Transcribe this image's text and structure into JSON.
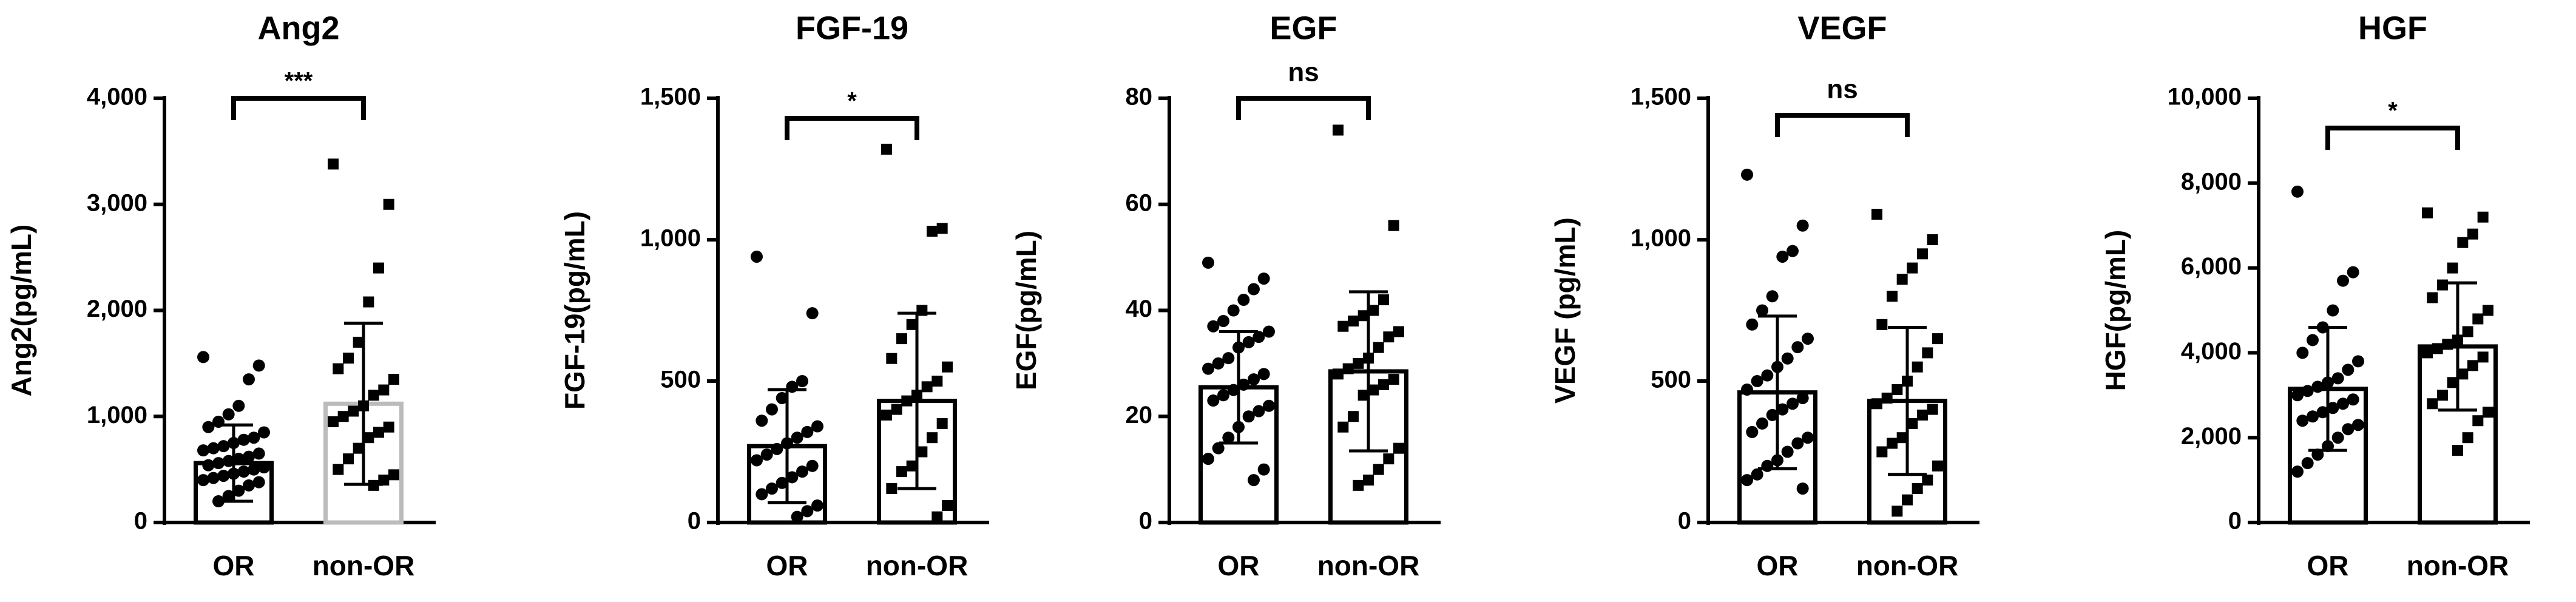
{
  "chart_data": [
    {
      "type": "bar",
      "title": "Ang2",
      "ylabel": "Ang2(pg/mL)",
      "categories": [
        "OR",
        "non-OR"
      ],
      "significance": "***",
      "values": [
        560,
        1120
      ],
      "errors": [
        360,
        760
      ],
      "bar_colors": [
        "#000000",
        "#bbbbbb"
      ],
      "points": [
        [
          1560,
          1480,
          1350,
          1100,
          1020,
          950,
          900,
          850,
          800,
          780,
          750,
          720,
          700,
          680,
          650,
          620,
          600,
          580,
          560,
          540,
          520,
          500,
          480,
          460,
          440,
          420,
          400,
          380,
          350,
          300,
          250,
          200
        ],
        [
          3380,
          3000,
          2400,
          2080,
          1700,
          1550,
          1450,
          1350,
          1250,
          1200,
          1100,
          1050,
          1000,
          950,
          900,
          850,
          800,
          700,
          600,
          500,
          450,
          400,
          350
        ]
      ],
      "ylim": [
        0,
        4000
      ],
      "yticks": [
        0,
        {
          "value": 1000,
          "label": "1,000"
        },
        {
          "value": 2000,
          "label": "2,000"
        },
        {
          "value": 3000,
          "label": "3,000"
        },
        {
          "value": 4000,
          "label": "4,000"
        }
      ]
    },
    {
      "type": "bar",
      "title": "FGF-19",
      "ylabel": "FGF-19(pg/mL)",
      "categories": [
        "OR",
        "non-OR"
      ],
      "significance": "*",
      "values": [
        270,
        430
      ],
      "errors": [
        200,
        310
      ],
      "bar_colors": [
        "#000000",
        "#000000"
      ],
      "points": [
        [
          940,
          740,
          500,
          480,
          440,
          400,
          360,
          340,
          320,
          300,
          280,
          260,
          240,
          220,
          200,
          180,
          160,
          140,
          120,
          100,
          60,
          40,
          20
        ],
        [
          1320,
          1040,
          1030,
          750,
          700,
          650,
          580,
          550,
          500,
          480,
          450,
          430,
          400,
          380,
          350,
          300,
          250,
          200,
          180,
          120,
          60,
          20
        ]
      ],
      "ylim": [
        0,
        1500
      ],
      "yticks": [
        0,
        500,
        {
          "value": 1000,
          "label": "1,000"
        },
        {
          "value": 1500,
          "label": "1,500"
        }
      ]
    },
    {
      "type": "bar",
      "title": "EGF",
      "ylabel": "EGF(pg/mL)",
      "categories": [
        "OR",
        "non-OR"
      ],
      "significance": "ns",
      "values": [
        25.5,
        28.5
      ],
      "errors": [
        10.5,
        15
      ],
      "bar_colors": [
        "#000000",
        "#000000"
      ],
      "points": [
        [
          49,
          46,
          44,
          42,
          40,
          38,
          37,
          36,
          35,
          34,
          33,
          31,
          30,
          29,
          28,
          27,
          26,
          25,
          24,
          23,
          22,
          21,
          20,
          18,
          16,
          14,
          12,
          10,
          8
        ],
        [
          74,
          56,
          42,
          40,
          39,
          38,
          37,
          36,
          35,
          33,
          31,
          30,
          29,
          28,
          27,
          26,
          25,
          24,
          20,
          18,
          14,
          12,
          10,
          8,
          7
        ]
      ],
      "ylim": [
        0,
        80
      ],
      "yticks": [
        0,
        20,
        40,
        60,
        80
      ]
    },
    {
      "type": "bar",
      "title": "VEGF",
      "ylabel": "VEGF (pg/mL)",
      "categories": [
        "OR",
        "non-OR"
      ],
      "significance": "ns",
      "values": [
        460,
        430
      ],
      "errors": [
        270,
        260
      ],
      "bar_colors": [
        "#000000",
        "#000000"
      ],
      "points": [
        [
          1230,
          1050,
          960,
          940,
          800,
          750,
          700,
          650,
          620,
          580,
          550,
          520,
          500,
          470,
          440,
          420,
          400,
          380,
          350,
          320,
          300,
          280,
          250,
          220,
          200,
          170,
          150,
          120
        ],
        [
          1090,
          1000,
          950,
          900,
          860,
          800,
          700,
          650,
          600,
          550,
          500,
          470,
          440,
          420,
          400,
          380,
          350,
          300,
          280,
          250,
          200,
          150,
          120,
          80,
          40
        ]
      ],
      "ylim": [
        0,
        1500
      ],
      "yticks": [
        0,
        500,
        {
          "value": 1000,
          "label": "1,000"
        },
        {
          "value": 1500,
          "label": "1,500"
        }
      ]
    },
    {
      "type": "bar",
      "title": "HGF",
      "ylabel": "HGF(pg/mL)",
      "categories": [
        "OR",
        "non-OR"
      ],
      "significance": "*",
      "values": [
        3150,
        4150
      ],
      "errors": [
        1450,
        1500
      ],
      "bar_colors": [
        "#000000",
        "#000000"
      ],
      "points": [
        [
          7800,
          5900,
          5700,
          5000,
          4600,
          4300,
          4000,
          3800,
          3600,
          3400,
          3300,
          3200,
          3100,
          3000,
          2900,
          2800,
          2700,
          2600,
          2500,
          2400,
          2300,
          2200,
          2000,
          1800,
          1600,
          1400,
          1200
        ],
        [
          7300,
          7200,
          6800,
          6600,
          6000,
          5600,
          5300,
          5000,
          4800,
          4500,
          4300,
          4200,
          4100,
          4000,
          3900,
          3700,
          3500,
          3300,
          3000,
          2800,
          2600,
          2400,
          2000,
          1700
        ]
      ],
      "ylim": [
        0,
        10000
      ],
      "yticks": [
        0,
        {
          "value": 2000,
          "label": "2,000"
        },
        {
          "value": 4000,
          "label": "4,000"
        },
        {
          "value": 6000,
          "label": "6,000"
        },
        {
          "value": 8000,
          "label": "8,000"
        },
        {
          "value": 10000,
          "label": "10,000"
        }
      ]
    }
  ]
}
